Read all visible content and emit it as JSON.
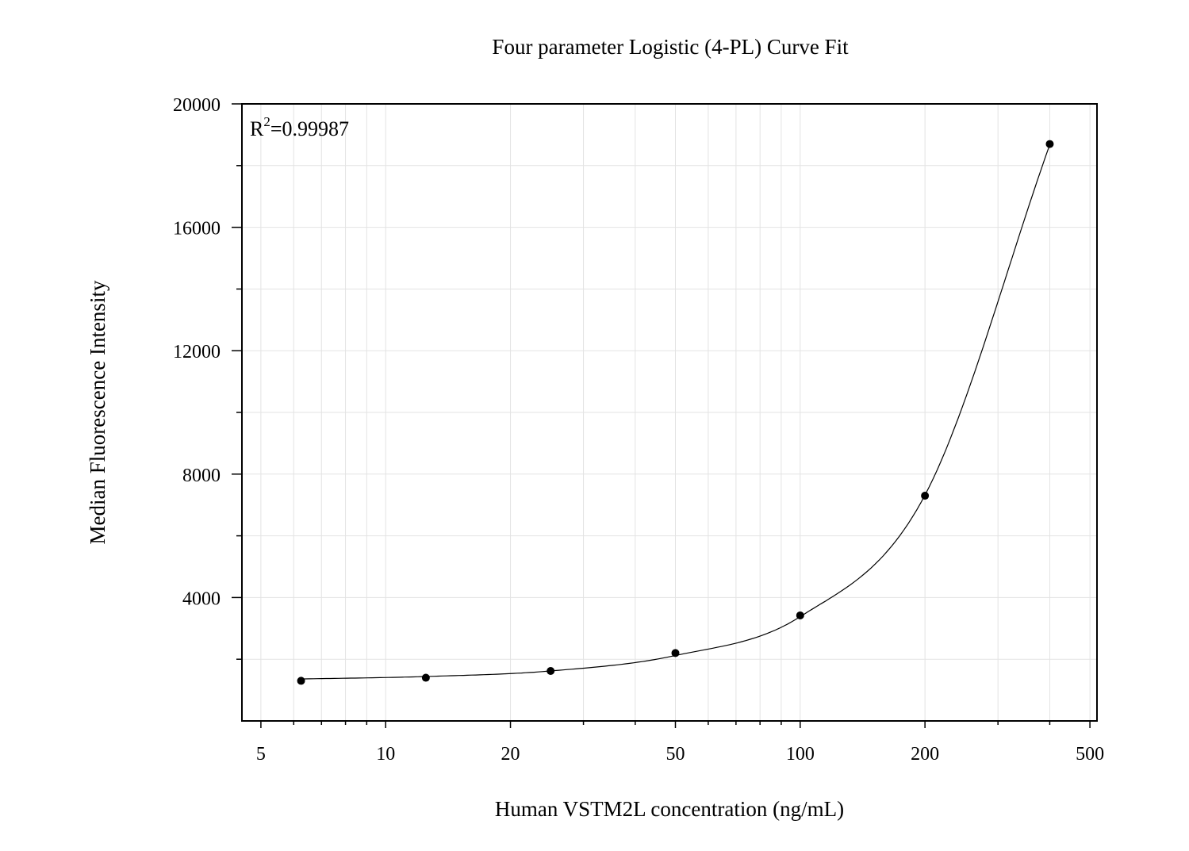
{
  "chart_data": {
    "type": "scatter",
    "title": "Four parameter Logistic (4-PL) Curve Fit",
    "xlabel": "Human VSTM2L concentration (ng/mL)",
    "ylabel": "Median Fluorescence Intensity",
    "x_scale": "log",
    "xlim": [
      4.5,
      520
    ],
    "ylim": [
      0,
      20000
    ],
    "x_ticks": [
      5,
      10,
      20,
      50,
      100,
      200,
      500
    ],
    "x_tick_labels": [
      "5",
      "10",
      "20",
      "50",
      "100",
      "200",
      "500"
    ],
    "y_ticks": [
      4000,
      8000,
      12000,
      16000,
      20000
    ],
    "y_tick_labels": [
      "4000",
      "8000",
      "12000",
      "16000",
      "20000"
    ],
    "grid": true,
    "annotation": {
      "prefix": "R",
      "superscript": "2",
      "text": "=0.99987"
    },
    "series": [
      {
        "type": "scatter",
        "x": [
          6.25,
          12.5,
          25,
          50,
          100,
          200,
          400
        ],
        "y": [
          1300,
          1400,
          1620,
          2200,
          3420,
          7300,
          18700
        ]
      }
    ],
    "fit": {
      "type": "4PL",
      "x": [
        6.25,
        12.5,
        25,
        50,
        100,
        200,
        400
      ],
      "y": [
        1360,
        1440,
        1620,
        2120,
        3380,
        7320,
        18680
      ]
    }
  }
}
